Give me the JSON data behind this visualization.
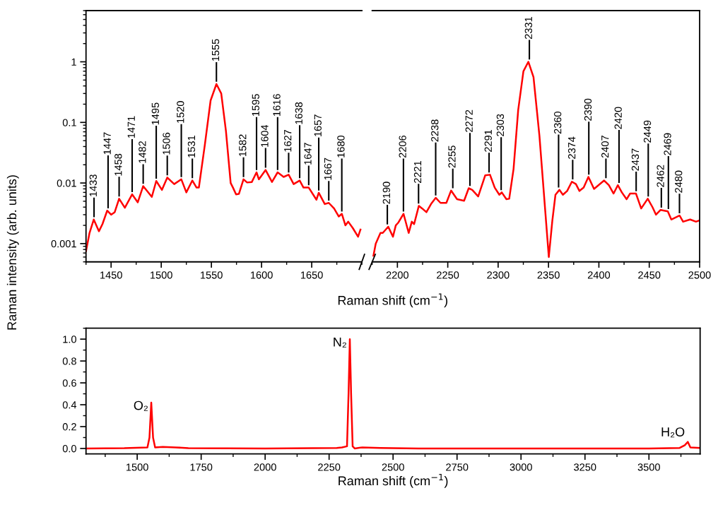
{
  "chart_data": [
    {
      "type": "line",
      "xlabel": "Raman shift (cm$^{−1}$)",
      "ylabel": "Raman intensity (arb. units)",
      "log": "y",
      "xlim": [
        1425,
        1700
      ],
      "xticks": [
        1450,
        1500,
        1550,
        1600,
        1650
      ],
      "ylim": [
        0.0005,
        7
      ],
      "yticks": [
        0.001,
        0.01,
        0.1,
        1
      ],
      "series": [
        {
          "color": "#ff0000",
          "x": [
            1425,
            1428.5,
            1432.7,
            1437.9,
            1441.4,
            1446.1,
            1450,
            1453.6,
            1458,
            1463.7,
            1471,
            1476.6,
            1482,
            1490.6,
            1495,
            1500.7,
            1506,
            1512.9,
            1520,
            1525,
            1531,
            1535.2,
            1537.5,
            1543.4,
            1549.2,
            1555,
            1559.8,
            1564.5,
            1569.2,
            1571.5,
            1574.6,
            1577.4,
            1582,
            1585.6,
            1590.3,
            1595,
            1597.3,
            1604,
            1610.4,
            1616,
            1622,
            1627,
            1632,
            1638,
            1641.8,
            1647,
            1654.7,
            1657,
            1663,
            1667,
            1672.3,
            1677,
            1680,
            1683.6,
            1686.4,
            1691,
            1696.2,
            1698.6
          ],
          "values": [
            0.00075,
            0.0015,
            0.0025,
            0.0016,
            0.0021,
            0.0035,
            0.003,
            0.0033,
            0.0055,
            0.0039,
            0.0065,
            0.0048,
            0.0089,
            0.0059,
            0.0108,
            0.0077,
            0.0123,
            0.0096,
            0.0115,
            0.007,
            0.011,
            0.0084,
            0.0084,
            0.042,
            0.23,
            0.43,
            0.3,
            0.072,
            0.01,
            0.0084,
            0.0065,
            0.0066,
            0.0115,
            0.0102,
            0.0104,
            0.015,
            0.0115,
            0.0164,
            0.0104,
            0.015,
            0.0126,
            0.0137,
            0.0096,
            0.011,
            0.0084,
            0.0084,
            0.0053,
            0.0069,
            0.0045,
            0.0047,
            0.0038,
            0.0028,
            0.0031,
            0.002,
            0.0023,
            0.0018,
            0.0013,
            0.0017
          ]
        }
      ],
      "annotations": [
        {
          "text": "1433",
          "x": 1433,
          "y": 0.0025
        },
        {
          "text": "1447",
          "x": 1447,
          "y": 0.0035
        },
        {
          "text": "1458",
          "x": 1458,
          "y": 0.0055
        },
        {
          "text": "1471",
          "x": 1471,
          "y": 0.0065
        },
        {
          "text": "1482",
          "x": 1482,
          "y": 0.0089
        },
        {
          "text": "1495",
          "x": 1495,
          "y": 0.0108
        },
        {
          "text": "1506",
          "x": 1506,
          "y": 0.0123
        },
        {
          "text": "1520",
          "x": 1520,
          "y": 0.0115
        },
        {
          "text": "1531",
          "x": 1531,
          "y": 0.011
        },
        {
          "text": "1555",
          "x": 1555,
          "y": 0.43
        },
        {
          "text": "1582",
          "x": 1582,
          "y": 0.0115
        },
        {
          "text": "1595",
          "x": 1595,
          "y": 0.015
        },
        {
          "text": "1604",
          "x": 1604,
          "y": 0.0164
        },
        {
          "text": "1616",
          "x": 1616,
          "y": 0.015
        },
        {
          "text": "1627",
          "x": 1627,
          "y": 0.0137
        },
        {
          "text": "1638",
          "x": 1638,
          "y": 0.011
        },
        {
          "text": "1647",
          "x": 1647,
          "y": 0.0084
        },
        {
          "text": "1657",
          "x": 1657,
          "y": 0.0069
        },
        {
          "text": "1667",
          "x": 1667,
          "y": 0.0047
        },
        {
          "text": "1680",
          "x": 1680,
          "y": 0.0031
        }
      ]
    },
    {
      "type": "line",
      "log": "y",
      "tick_labels": "x",
      "xlim": [
        2175,
        2500
      ],
      "xticks": [
        2200,
        2250,
        2300,
        2350,
        2400,
        2450,
        2500
      ],
      "ylim": [
        0.0005,
        7
      ],
      "yticks": [
        0.001,
        0.01,
        0.1,
        1
      ],
      "series": [
        {
          "color": "#ff0000",
          "x": [
            2176.2,
            2178.5,
            2183.2,
            2185.5,
            2190.9,
            2195.6,
            2198.4,
            2200.7,
            2206.1,
            2211.2,
            2214.3,
            2216.6,
            2221.3,
            2224.6,
            2228.8,
            2233.4,
            2238.1,
            2242.8,
            2248.6,
            2253.3,
            2259.2,
            2266.2,
            2270.8,
            2274.3,
            2280.2,
            2287.2,
            2291.9,
            2296.6,
            2301.2,
            2303.6,
            2308.2,
            2311,
            2315.3,
            2319.9,
            2325.1,
            2330,
            2335.1,
            2341,
            2346.8,
            2350.3,
            2353.8,
            2356.9,
            2360.8,
            2364.3,
            2368.5,
            2373.2,
            2377.2,
            2380.7,
            2384.9,
            2389.6,
            2395.2,
            2405.2,
            2409.9,
            2414.6,
            2418.8,
            2422.8,
            2427.5,
            2431,
            2436.8,
            2442,
            2448.5,
            2453.2,
            2456.7,
            2461.3,
            2468.4,
            2471.9,
            2480.1,
            2483.6,
            2490.6,
            2496.4,
            2499.4
          ],
          "values": [
            0.00063,
            0.001,
            0.0015,
            0.0015,
            0.0019,
            0.0013,
            0.002,
            0.0022,
            0.0031,
            0.0015,
            0.0023,
            0.0021,
            0.0042,
            0.0038,
            0.0033,
            0.0045,
            0.0057,
            0.0047,
            0.0047,
            0.0075,
            0.0054,
            0.0051,
            0.0082,
            0.0077,
            0.006,
            0.0134,
            0.0137,
            0.0084,
            0.0064,
            0.007,
            0.0054,
            0.0055,
            0.017,
            0.16,
            0.7,
            1.0,
            0.56,
            0.06,
            0.0034,
            0.0006,
            0.0024,
            0.0064,
            0.0077,
            0.0064,
            0.0074,
            0.0105,
            0.0096,
            0.0074,
            0.0084,
            0.0126,
            0.008,
            0.011,
            0.0092,
            0.0067,
            0.0092,
            0.007,
            0.0054,
            0.0067,
            0.0067,
            0.0038,
            0.0055,
            0.004,
            0.003,
            0.0036,
            0.0034,
            0.0025,
            0.0029,
            0.0023,
            0.0025,
            0.0023,
            0.0024
          ]
        }
      ],
      "annotations": [
        {
          "text": "2190",
          "x": 2190,
          "y": 0.0019
        },
        {
          "text": "2206",
          "x": 2206,
          "y": 0.0031
        },
        {
          "text": "2221",
          "x": 2221,
          "y": 0.0042
        },
        {
          "text": "2238",
          "x": 2238,
          "y": 0.0057
        },
        {
          "text": "2255",
          "x": 2255,
          "y": 0.0075
        },
        {
          "text": "2272",
          "x": 2272,
          "y": 0.0082
        },
        {
          "text": "2291",
          "x": 2291,
          "y": 0.0137
        },
        {
          "text": "2303",
          "x": 2303,
          "y": 0.007
        },
        {
          "text": "2331",
          "x": 2331,
          "y": 1.0
        },
        {
          "text": "2360",
          "x": 2360,
          "y": 0.0077
        },
        {
          "text": "2374",
          "x": 2374,
          "y": 0.0105
        },
        {
          "text": "2390",
          "x": 2390,
          "y": 0.0126
        },
        {
          "text": "2407",
          "x": 2407,
          "y": 0.011
        },
        {
          "text": "2420",
          "x": 2420,
          "y": 0.0092
        },
        {
          "text": "2437",
          "x": 2437,
          "y": 0.0067
        },
        {
          "text": "2449",
          "x": 2449,
          "y": 0.0055
        },
        {
          "text": "2462",
          "x": 2462,
          "y": 0.0036
        },
        {
          "text": "2469",
          "x": 2469,
          "y": 0.0034
        },
        {
          "text": "2480",
          "x": 2480,
          "y": 0.0029
        }
      ]
    },
    {
      "type": "line",
      "xlabel": "Raman shift (cm$^{−1}$)",
      "xlim": [
        1300,
        3700
      ],
      "xticks": [
        1500,
        1750,
        2000,
        2250,
        2500,
        2750,
        3000,
        3250,
        3500
      ],
      "ylim": [
        -0.05,
        1.1
      ],
      "yticks": [
        {
          "value": 0,
          "label": "0.0"
        },
        {
          "value": 0.2,
          "label": "0.2"
        },
        {
          "value": 0.4,
          "label": "0.4"
        },
        {
          "value": 0.6,
          "label": "0.6"
        },
        {
          "value": 0.8,
          "label": "0.8"
        },
        {
          "value": 1,
          "label": "1.0"
        }
      ],
      "series": [
        {
          "color": "#ff0000",
          "x": [
            1300,
            1450,
            1540,
            1548,
            1555,
            1562,
            1570,
            1600,
            1650,
            1700,
            2000,
            2280,
            2300,
            2320,
            2326,
            2331,
            2336,
            2342,
            2350,
            2380,
            2450,
            2600,
            3500,
            3620,
            3640,
            3652,
            3662,
            3700
          ],
          "values": [
            0.0,
            0.003,
            0.01,
            0.1,
            0.42,
            0.1,
            0.01,
            0.015,
            0.01,
            0.003,
            0.0,
            0.005,
            0.01,
            0.02,
            0.5,
            1.0,
            0.5,
            0.02,
            0.0,
            0.01,
            0.005,
            0.0,
            0.0,
            0.005,
            0.03,
            0.06,
            0.01,
            0.005
          ]
        }
      ],
      "annotations": [
        {
          "text": "O₂",
          "x": 1555,
          "y": 0.42
        },
        {
          "text": "N₂",
          "x": 2331,
          "y": 1.0
        },
        {
          "text": "H₂O",
          "x": 3652,
          "y": 0.06
        }
      ]
    }
  ]
}
